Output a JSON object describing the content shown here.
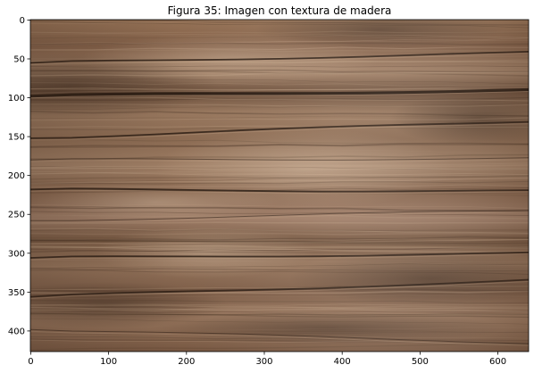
{
  "chart_data": {
    "type": "image",
    "title": "Figura 35: Imagen con textura de madera",
    "xlabel": "",
    "ylabel": "",
    "image_width": 640,
    "image_height": 427,
    "xlim": [
      -0.5,
      639.5
    ],
    "ylim": [
      426.5,
      -0.5
    ],
    "xticks": [
      0,
      100,
      200,
      300,
      400,
      500,
      600
    ],
    "yticks": [
      0,
      50,
      100,
      150,
      200,
      250,
      300,
      350,
      400
    ],
    "grid": false,
    "colors": {
      "wood_base": "#8d6a50",
      "wood_light": "#b89677",
      "wood_dark": "#5e4533",
      "crack": "#2b1d14"
    },
    "cracks": [
      {
        "y_left": 55,
        "y_right": 42,
        "strength": "medium"
      },
      {
        "y_left": 98,
        "y_right": 90,
        "strength": "strong"
      },
      {
        "y_left": 152,
        "y_right": 130,
        "strength": "medium"
      },
      {
        "y_left": 180,
        "y_right": 178,
        "strength": "faint"
      },
      {
        "y_left": 218,
        "y_right": 220,
        "strength": "medium"
      },
      {
        "y_left": 258,
        "y_right": 245,
        "strength": "faint"
      },
      {
        "y_left": 306,
        "y_right": 300,
        "strength": "medium"
      },
      {
        "y_left": 356,
        "y_right": 335,
        "strength": "medium"
      },
      {
        "y_left": 398,
        "y_right": 415,
        "strength": "faint"
      }
    ]
  }
}
